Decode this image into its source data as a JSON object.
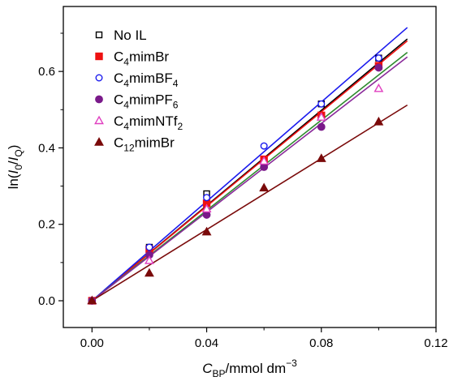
{
  "chart_data": {
    "type": "scatter",
    "xlim": [
      -0.01,
      0.12
    ],
    "ylim": [
      -0.07,
      0.77
    ],
    "x_ticks": [
      0.0,
      0.04,
      0.08,
      0.12
    ],
    "y_ticks": [
      0.0,
      0.2,
      0.4,
      0.6
    ],
    "x_tick_labels": [
      "0.00",
      "0.04",
      "0.08",
      "0.12"
    ],
    "y_tick_labels": [
      "0.0",
      "0.2",
      "0.4",
      "0.6"
    ],
    "grid": false,
    "legend_placement": "top-left",
    "xlabel": {
      "main": "C",
      "sub": "BP",
      "rest": "/mmol dm",
      "sup": "−3"
    },
    "ylabel": {
      "pre": "ln(",
      "i0": "I",
      "i0_sub": "0",
      "slash": "/",
      "iq": "I",
      "iq_sub": "Q",
      "post": ")"
    },
    "series": [
      {
        "name": {
          "base": "No IL",
          "parts": []
        },
        "marker": "square-open",
        "color": "#000000",
        "line_color": "#000000",
        "x": [
          0,
          0.02,
          0.04,
          0.06,
          0.08,
          0.1
        ],
        "y": [
          0.0,
          0.14,
          0.28,
          0.365,
          0.515,
          0.635
        ],
        "fit": {
          "x_end": 0.11,
          "y_end": 0.685
        }
      },
      {
        "name": {
          "base": "C",
          "parts": [
            [
              "4",
              "sub"
            ],
            [
              "mimBr",
              ""
            ]
          ]
        },
        "marker": "square-filled",
        "color": "#ee1111",
        "line_color": "#ee1111",
        "x": [
          0,
          0.02,
          0.04,
          0.06,
          0.08,
          0.1
        ],
        "y": [
          0.0,
          0.135,
          0.255,
          0.37,
          0.485,
          0.615
        ],
        "fit": {
          "x_end": 0.11,
          "y_end": 0.68
        }
      },
      {
        "name": {
          "base": "C",
          "parts": [
            [
              "4",
              "sub"
            ],
            [
              "mimBF",
              ""
            ],
            [
              "4",
              "sub"
            ]
          ]
        },
        "marker": "circle-open",
        "color": "#1a1aee",
        "line_color": "#1a1aee",
        "x": [
          0,
          0.02,
          0.04,
          0.06,
          0.08,
          0.1
        ],
        "y": [
          0.0,
          0.14,
          0.27,
          0.405,
          0.515,
          0.635
        ],
        "fit": {
          "x_end": 0.11,
          "y_end": 0.715
        }
      },
      {
        "name": {
          "base": "C",
          "parts": [
            [
              "4",
              "sub"
            ],
            [
              "mimPF",
              ""
            ],
            [
              "6",
              "sub"
            ]
          ]
        },
        "marker": "circle-filled",
        "color": "#7a1a8a",
        "line_color": "#2e8b2e",
        "x": [
          0,
          0.02,
          0.04,
          0.06,
          0.08,
          0.1
        ],
        "y": [
          0.0,
          0.12,
          0.225,
          0.35,
          0.455,
          0.61
        ],
        "fit": {
          "x_end": 0.11,
          "y_end": 0.65
        }
      },
      {
        "name": {
          "base": "C",
          "parts": [
            [
              "4",
              "sub"
            ],
            [
              "mimNTf",
              ""
            ],
            [
              "2",
              "sub"
            ]
          ]
        },
        "marker": "triangle-open",
        "color": "#e040c0",
        "line_color": "#8a2a9a",
        "x": [
          0,
          0.02,
          0.04,
          0.06,
          0.08,
          0.1
        ],
        "y": [
          0.0,
          0.105,
          0.24,
          0.365,
          0.48,
          0.555
        ],
        "fit": {
          "x_end": 0.11,
          "y_end": 0.638
        }
      },
      {
        "name": {
          "base": "C",
          "parts": [
            [
              "12",
              "sub"
            ],
            [
              "mimBr",
              ""
            ]
          ]
        },
        "marker": "triangle-filled",
        "color": "#7a0a0a",
        "line_color": "#7a0a0a",
        "x": [
          0,
          0.02,
          0.04,
          0.06,
          0.08,
          0.1
        ],
        "y": [
          0.0,
          0.072,
          0.18,
          0.295,
          0.372,
          0.468
        ],
        "fit": {
          "x_end": 0.11,
          "y_end": 0.512
        }
      }
    ]
  }
}
